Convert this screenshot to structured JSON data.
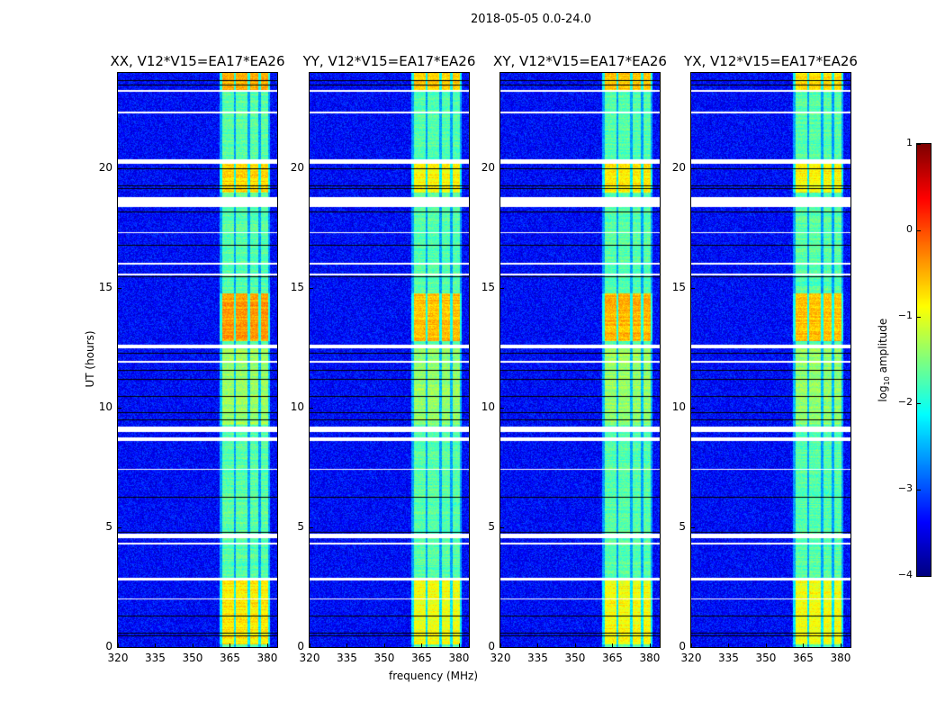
{
  "figure": {
    "title": "2018-05-05 0.0-24.0"
  },
  "chart_data": {
    "type": "heatmap",
    "title": "2018-05-05 0.0-24.0",
    "xlabel": "frequency (MHz)",
    "ylabel": "UT (hours)",
    "xlim": [
      320,
      384
    ],
    "ylim": [
      0,
      24
    ],
    "xticks": [
      "320",
      "335",
      "350",
      "365",
      "380"
    ],
    "yticks": [
      "0",
      "5",
      "10",
      "15",
      "20"
    ],
    "panels": [
      {
        "title": "XX, V12*V15=EA17*EA26",
        "strength": 1.0
      },
      {
        "title": "YY, V12*V15=EA17*EA26",
        "strength": 0.85
      },
      {
        "title": "XY, V12*V15=EA17*EA26",
        "strength": 0.9
      },
      {
        "title": "YX, V12*V15=EA17*EA26",
        "strength": 0.85
      }
    ],
    "spectral_windows_mhz": [
      [
        362,
        366.5
      ],
      [
        367.5,
        372
      ],
      [
        373,
        376.5
      ],
      [
        377.5,
        380.5
      ]
    ],
    "enhanced_ut_ranges": [
      {
        "range": [
          0.1,
          2.8
        ],
        "boost": 0.9
      },
      {
        "range": [
          12.8,
          14.8
        ],
        "boost": 1.3
      },
      {
        "range": [
          19,
          20.2
        ],
        "boost": 1.0
      },
      {
        "range": [
          23.3,
          24
        ],
        "boost": 1.2
      },
      {
        "range": [
          9.3,
          12.5
        ],
        "boost": 0.35
      }
    ],
    "flagged_ut_ranges": [
      [
        23.2,
        23.3
      ],
      [
        22.3,
        22.4
      ],
      [
        20.2,
        20.4
      ],
      [
        18.4,
        18.8
      ],
      [
        17.3,
        17.35
      ],
      [
        16.0,
        16.05
      ],
      [
        15.55,
        15.6
      ],
      [
        12.5,
        12.65
      ],
      [
        11.9,
        11.95
      ],
      [
        9.0,
        9.2
      ],
      [
        8.6,
        8.75
      ],
      [
        7.4,
        7.45
      ],
      [
        4.55,
        4.75
      ],
      [
        4.3,
        4.35
      ],
      [
        2.8,
        2.9
      ],
      [
        2.0,
        2.05
      ]
    ],
    "black_line_ut": [
      23.5,
      23.7,
      20.0,
      19.3,
      19.2,
      18.2,
      16.8,
      15.5,
      12.3,
      11.6,
      11.2,
      10.5,
      9.8,
      9.5,
      6.3,
      4.8,
      1.3,
      0.6,
      0.5
    ],
    "colorbar": {
      "label_main": "log",
      "label_sub": "10",
      "label_rest": " amplitude",
      "range": [
        -4,
        1
      ],
      "ticks": [
        "1",
        "0",
        "−1",
        "−2",
        "−3",
        "−4"
      ],
      "colormap": "jet"
    }
  }
}
